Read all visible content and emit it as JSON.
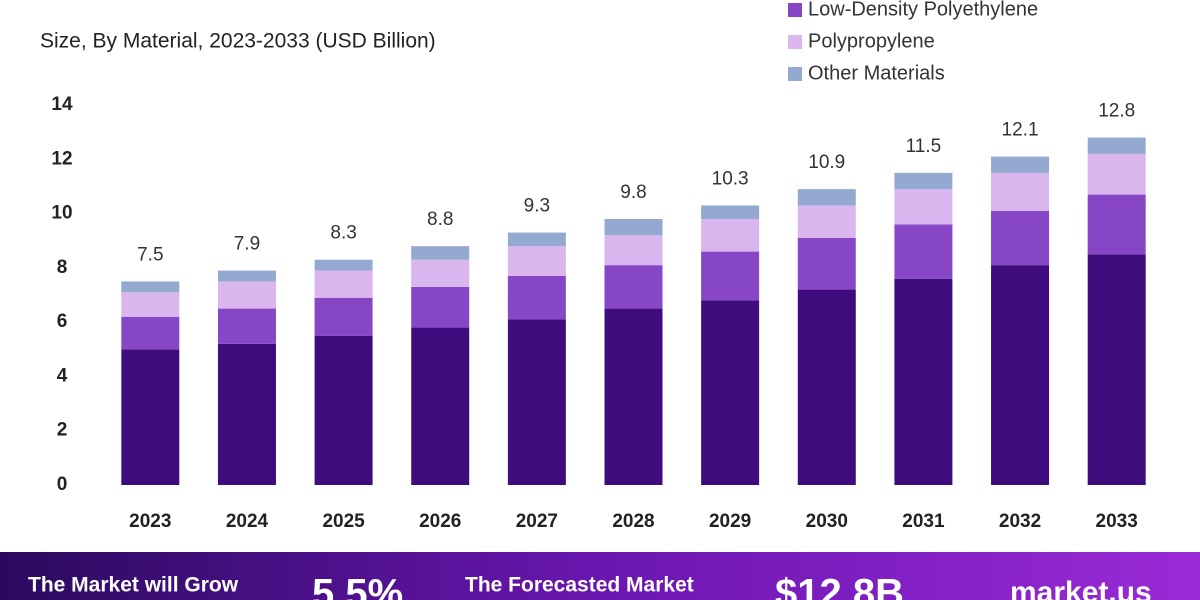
{
  "chart_data": {
    "type": "stacked_bar",
    "subtitle": "Size, By Material, 2023-2033 (USD Billion)",
    "categories": [
      "2023",
      "2024",
      "2025",
      "2026",
      "2027",
      "2028",
      "2029",
      "2030",
      "2031",
      "2032",
      "2033"
    ],
    "series": [
      {
        "color": "#3e0c7c",
        "values": [
          5.0,
          5.2,
          5.5,
          5.8,
          6.1,
          6.5,
          6.8,
          7.2,
          7.6,
          8.1,
          8.5
        ]
      },
      {
        "name": "Low-Density Polyethylene",
        "color": "#8746c6",
        "values": [
          1.2,
          1.3,
          1.4,
          1.5,
          1.6,
          1.6,
          1.8,
          1.9,
          2.0,
          2.0,
          2.2
        ]
      },
      {
        "name": "Polypropylene",
        "color": "#d9b6ee",
        "values": [
          0.9,
          1.0,
          1.0,
          1.0,
          1.1,
          1.1,
          1.2,
          1.2,
          1.3,
          1.4,
          1.5
        ]
      },
      {
        "name": "Other Materials",
        "color": "#93a9cf",
        "values": [
          0.4,
          0.4,
          0.4,
          0.5,
          0.5,
          0.6,
          0.5,
          0.6,
          0.6,
          0.6,
          0.6
        ]
      }
    ],
    "totals": [
      7.5,
      7.9,
      8.3,
      8.8,
      9.3,
      9.8,
      10.3,
      10.9,
      11.5,
      12.1,
      12.8
    ],
    "ylim": [
      0,
      14
    ],
    "yticks": [
      0,
      2,
      4,
      6,
      8,
      10,
      12,
      14
    ],
    "grid": false
  },
  "footer": {
    "grow_text": "The Market will Grow",
    "cagr": "5.5%",
    "forecast_text": "The Forecasted Market",
    "forecast_value": "$12.8B",
    "brand": "market.us"
  }
}
